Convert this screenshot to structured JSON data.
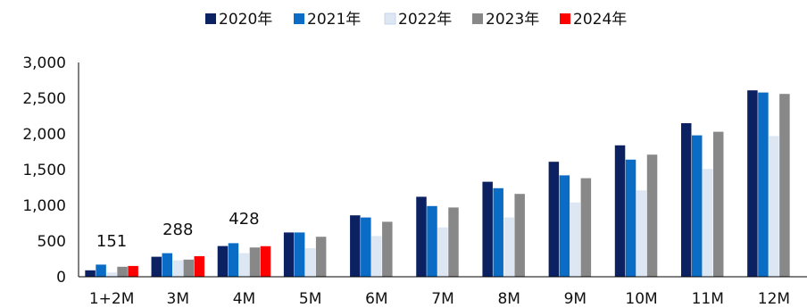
{
  "chart_data": {
    "type": "bar",
    "categories": [
      "1+2M",
      "3M",
      "4M",
      "5M",
      "6M",
      "7M",
      "8M",
      "9M",
      "10M",
      "11M",
      "12M"
    ],
    "series": [
      {
        "name": "2020年",
        "color": "#0b2162",
        "values": [
          90,
          280,
          430,
          620,
          860,
          1120,
          1330,
          1610,
          1840,
          2150,
          2610
        ]
      },
      {
        "name": "2021年",
        "color": "#0a6cc4",
        "values": [
          170,
          330,
          470,
          620,
          830,
          990,
          1240,
          1420,
          1640,
          1980,
          2580
        ]
      },
      {
        "name": "2022年",
        "color": "#dde7f4",
        "values": [
          60,
          230,
          330,
          400,
          570,
          690,
          830,
          1040,
          1210,
          1510,
          1970
        ]
      },
      {
        "name": "2023年",
        "color": "#888888",
        "values": [
          140,
          240,
          410,
          560,
          770,
          970,
          1160,
          1380,
          1710,
          2030,
          2560
        ]
      },
      {
        "name": "2024年",
        "color": "#ff0000",
        "values": [
          151,
          288,
          428,
          null,
          null,
          null,
          null,
          null,
          null,
          null,
          null
        ]
      }
    ],
    "data_labels": [
      "151",
      "288",
      "428"
    ],
    "ylim": [
      0,
      3000
    ],
    "yticks": [
      "0",
      "500",
      "1,000",
      "1,500",
      "2,000",
      "2,500",
      "3,000"
    ],
    "ytick_values": [
      0,
      500,
      1000,
      1500,
      2000,
      2500,
      3000
    ],
    "legend_position": "top",
    "grid": false,
    "title": "",
    "xlabel": "",
    "ylabel": ""
  }
}
